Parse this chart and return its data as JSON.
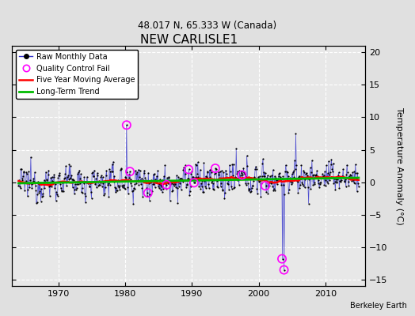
{
  "title": "NEW CARLISLE1",
  "subtitle": "48.017 N, 65.333 W (Canada)",
  "ylabel": "Temperature Anomaly (°C)",
  "credit": "Berkeley Earth",
  "xlim": [
    1963,
    2016
  ],
  "ylim": [
    -16,
    21
  ],
  "yticks": [
    -15,
    -10,
    -5,
    0,
    5,
    10,
    15,
    20
  ],
  "xticks": [
    1970,
    1980,
    1990,
    2000,
    2010
  ],
  "bg_color": "#e0e0e0",
  "plot_bg_color": "#e8e8e8",
  "seed": 12345,
  "years_start": 1964,
  "years_end": 2015,
  "noise_std": 1.6,
  "trend_slope": 0.018,
  "qc_fail_positions": [
    [
      1980.2,
      8.8
    ],
    [
      1980.7,
      -1.8
    ],
    [
      1983.4,
      2.5
    ],
    [
      1986.2,
      -1.5
    ],
    [
      1989.5,
      2.8
    ],
    [
      1990.3,
      -1.2
    ],
    [
      1993.5,
      2.0
    ],
    [
      1997.5,
      -0.8
    ],
    [
      2001.0,
      -0.5
    ],
    [
      2003.5,
      -11.8
    ],
    [
      2003.8,
      -13.5
    ]
  ],
  "data_spikes": [
    [
      1980.2,
      8.8
    ],
    [
      2003.5,
      -11.8
    ],
    [
      2003.8,
      -13.5
    ],
    [
      2005.5,
      7.5
    ]
  ]
}
